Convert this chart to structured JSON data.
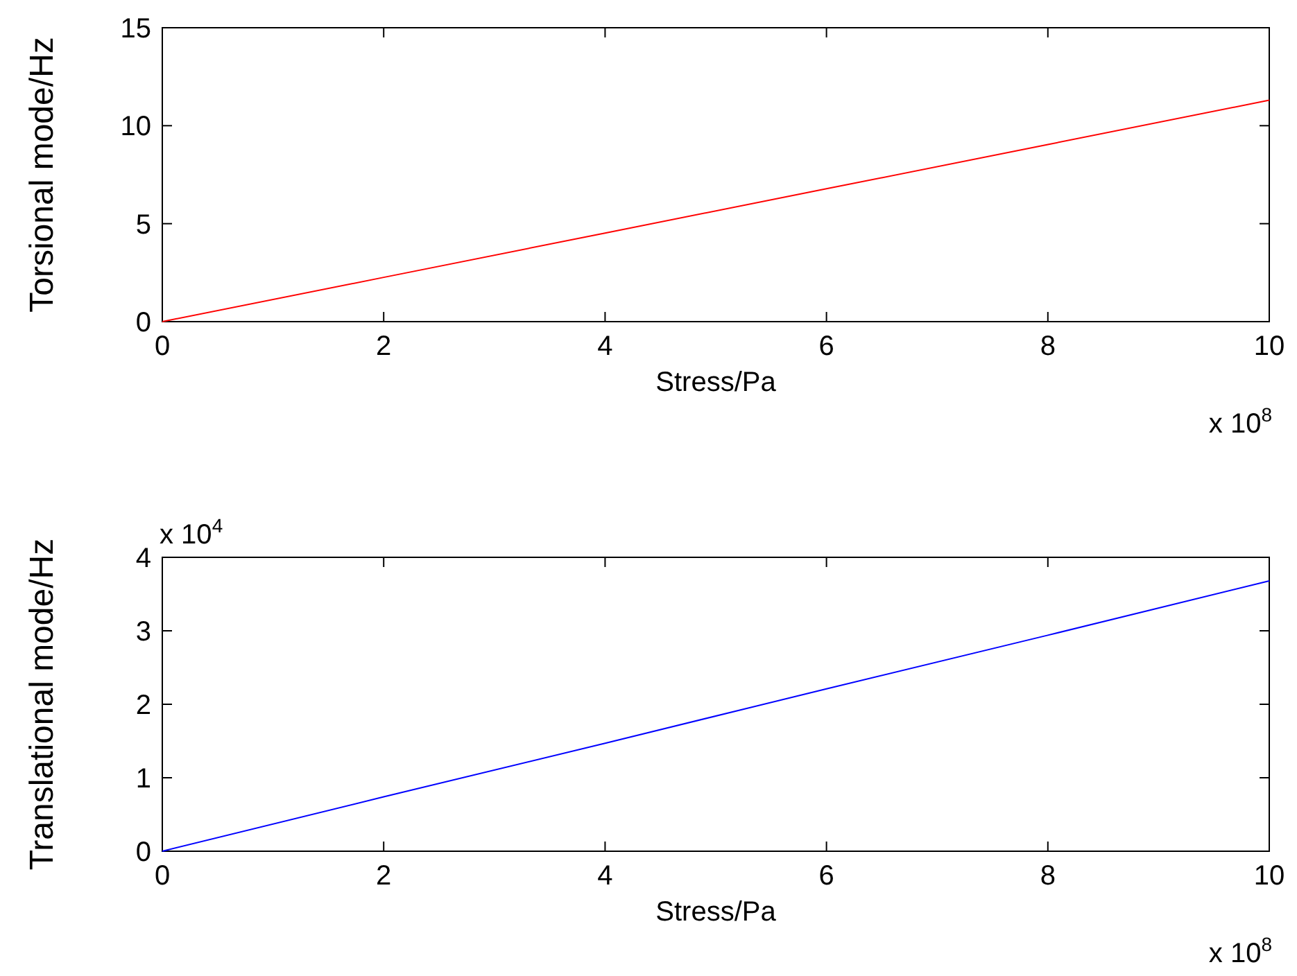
{
  "chart_data": [
    {
      "type": "line",
      "xlabel": "Stress/Pa",
      "ylabel": "Torsional mode/Hz",
      "series": [
        {
          "color": "#ff0000",
          "x": [
            0,
            2,
            4,
            6,
            8,
            10
          ],
          "values": [
            0,
            2.26,
            4.52,
            6.78,
            9.04,
            11.3
          ]
        }
      ],
      "xlim": [
        0,
        10
      ],
      "ylim": [
        0,
        15
      ],
      "xticks": [
        0,
        2,
        4,
        6,
        8,
        10
      ],
      "yticks": [
        0,
        5,
        10,
        15
      ],
      "annotations": [
        "x 10$^{8}$"
      ]
    },
    {
      "type": "line",
      "xlabel": "Stress/Pa",
      "ylabel": "Translational mode/Hz",
      "series": [
        {
          "color": "#0000ff",
          "x": [
            0,
            2,
            4,
            6,
            8,
            10
          ],
          "values": [
            0,
            0.74,
            1.47,
            2.21,
            2.94,
            3.68
          ]
        }
      ],
      "xlim": [
        0,
        10
      ],
      "ylim": [
        0,
        4
      ],
      "xticks": [
        0,
        2,
        4,
        6,
        8,
        10
      ],
      "yticks": [
        0,
        1,
        2,
        3,
        4
      ],
      "annotations": [
        "x 10$^{8}$",
        "x 10$^{4}$"
      ]
    }
  ]
}
